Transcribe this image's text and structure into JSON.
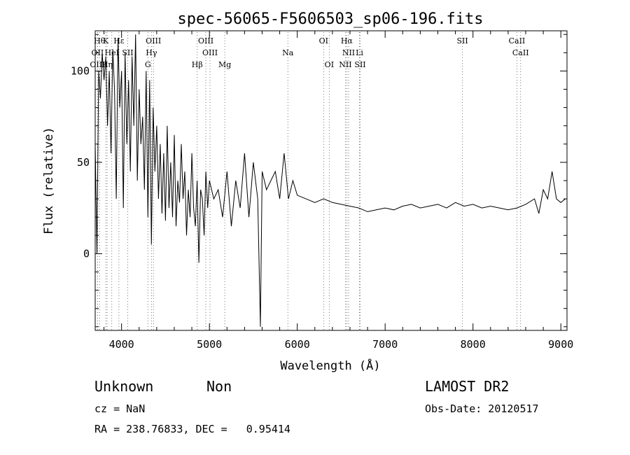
{
  "chart_data": {
    "type": "line",
    "title": "spec-56065-F5606503_sp06-196.fits",
    "xlabel": "Wavelength (Å)",
    "ylabel": "Flux (relative)",
    "xlim": [
      3700,
      9070
    ],
    "ylim": [
      -42,
      122
    ],
    "xticks": [
      4000,
      5000,
      6000,
      7000,
      8000,
      9000
    ],
    "yticks": [
      0,
      50,
      100
    ],
    "grid": false,
    "series": [
      {
        "x": [
          3700,
          3720,
          3740,
          3760,
          3780,
          3800,
          3820,
          3840,
          3860,
          3880,
          3900,
          3920,
          3940,
          3960,
          3980,
          4000,
          4020,
          4040,
          4060,
          4080,
          4100,
          4120,
          4140,
          4160,
          4180,
          4200,
          4220,
          4240,
          4260,
          4280,
          4300,
          4320,
          4340,
          4360,
          4380,
          4400,
          4420,
          4440,
          4460,
          4480,
          4500,
          4520,
          4540,
          4560,
          4580,
          4600,
          4620,
          4640,
          4660,
          4680,
          4700,
          4720,
          4740,
          4760,
          4780,
          4800,
          4820,
          4840,
          4860,
          4880,
          4900,
          4920,
          4940,
          4960,
          4980,
          5000,
          5050,
          5100,
          5150,
          5200,
          5250,
          5300,
          5350,
          5400,
          5450,
          5500,
          5550,
          5580,
          5600,
          5650,
          5700,
          5750,
          5800,
          5850,
          5900,
          5950,
          6000,
          6100,
          6200,
          6300,
          6400,
          6500,
          6600,
          6700,
          6800,
          6900,
          7000,
          7100,
          7200,
          7300,
          7400,
          7500,
          7600,
          7700,
          7800,
          7900,
          8000,
          8100,
          8200,
          8300,
          8400,
          8500,
          8600,
          8700,
          8750,
          8800,
          8850,
          8900,
          8950,
          9000,
          9050
        ],
        "values": [
          60,
          0,
          100,
          85,
          110,
          95,
          108,
          70,
          100,
          55,
          112,
          90,
          30,
          118,
          80,
          100,
          25,
          110,
          60,
          95,
          45,
          108,
          70,
          120,
          40,
          90,
          60,
          75,
          35,
          100,
          20,
          95,
          5,
          80,
          45,
          70,
          30,
          60,
          22,
          55,
          18,
          70,
          25,
          50,
          20,
          65,
          15,
          40,
          28,
          60,
          30,
          45,
          10,
          35,
          20,
          55,
          25,
          15,
          40,
          -5,
          35,
          30,
          10,
          45,
          25,
          40,
          30,
          35,
          20,
          45,
          15,
          40,
          25,
          55,
          20,
          50,
          30,
          -40,
          45,
          35,
          40,
          45,
          30,
          55,
          30,
          40,
          32,
          30,
          28,
          30,
          28,
          27,
          26,
          25,
          23,
          24,
          25,
          24,
          26,
          27,
          25,
          26,
          27,
          25,
          28,
          26,
          27,
          25,
          26,
          25,
          24,
          25,
          27,
          30,
          22,
          35,
          30,
          45,
          30,
          28,
          30
        ]
      }
    ],
    "lines": [
      {
        "name": "Hθ",
        "wave": 3750,
        "row": 0
      },
      {
        "name": "K",
        "wave": 3820,
        "row": 0
      },
      {
        "name": "Hε",
        "wave": 3970,
        "row": 0
      },
      {
        "name": "OIII",
        "wave": 4363,
        "row": 0
      },
      {
        "name": "OIII",
        "wave": 4959,
        "row": 0
      },
      {
        "name": "OI",
        "wave": 6300,
        "row": 0
      },
      {
        "name": "Hα",
        "wave": 6563,
        "row": 0
      },
      {
        "name": "SII",
        "wave": 7880,
        "row": 0
      },
      {
        "name": "CaII",
        "wave": 8500,
        "row": 0
      },
      {
        "name": "OII",
        "wave": 3727,
        "row": 1
      },
      {
        "name": "HeI",
        "wave": 3889,
        "row": 1
      },
      {
        "name": "SII",
        "wave": 4070,
        "row": 1
      },
      {
        "name": "Hγ",
        "wave": 4340,
        "row": 1
      },
      {
        "name": "OIII",
        "wave": 5007,
        "row": 1
      },
      {
        "name": "Na",
        "wave": 5893,
        "row": 1
      },
      {
        "name": "NII",
        "wave": 6584,
        "row": 1
      },
      {
        "name": "Li",
        "wave": 6708,
        "row": 1
      },
      {
        "name": "CaII",
        "wave": 8542,
        "row": 1
      },
      {
        "name": "OIII",
        "wave": 3727,
        "row": 2
      },
      {
        "name": "Hη",
        "wave": 3835,
        "row": 2
      },
      {
        "name": "G",
        "wave": 4300,
        "row": 2
      },
      {
        "name": "Hβ",
        "wave": 4861,
        "row": 2
      },
      {
        "name": "Mg",
        "wave": 5175,
        "row": 2
      },
      {
        "name": "OI",
        "wave": 6364,
        "row": 2
      },
      {
        "name": "NII",
        "wave": 6548,
        "row": 2
      },
      {
        "name": "SII",
        "wave": 6716,
        "row": 2
      }
    ]
  },
  "info": {
    "class": "Unknown",
    "subclass": "Non",
    "cz": "cz = NaN",
    "radec": "RA = 238.76833, DEC =   0.95414",
    "survey": "LAMOST DR2",
    "obsdate": "Obs-Date: 20120517"
  }
}
